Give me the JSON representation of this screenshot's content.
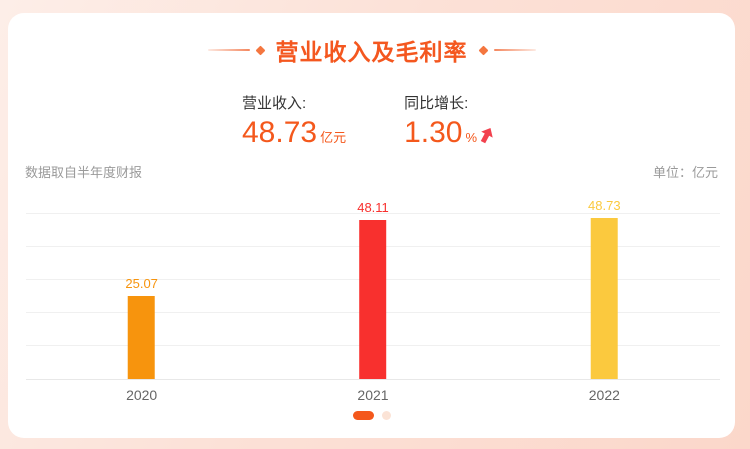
{
  "card": {
    "title": "营业收入及毛利率"
  },
  "stats": [
    {
      "label": "营业收入:",
      "value": "48.73",
      "unit": "亿元"
    },
    {
      "label": "同比增长:",
      "value": "1.30",
      "unit": "%",
      "trend": "up"
    }
  ],
  "notes": {
    "source": "数据取自半年度财报",
    "unit": "单位：亿元"
  },
  "chart_data": {
    "type": "bar",
    "title": "营业收入及毛利率",
    "categories": [
      "2020",
      "2021",
      "2022"
    ],
    "values": [
      25.07,
      48.11,
      48.73
    ],
    "value_labels": [
      "25.07",
      "48.11",
      "48.73"
    ],
    "bar_colors": [
      "#f7940d",
      "#f8302e",
      "#fbc93e"
    ],
    "xlabel": "",
    "ylabel": "",
    "unit": "亿元",
    "ylim": [
      0,
      50
    ],
    "gridline_step": 10,
    "grid": true,
    "legend": false
  },
  "pagination": {
    "pages": 2,
    "active_index": 0
  },
  "colors": {
    "accent_orange": "#f4581c",
    "title_orange": "#f4571f",
    "arrow_red": "#f2414e",
    "bar_2020": "#f7940d",
    "bar_2021": "#f8302e",
    "bar_2022": "#fbc93e",
    "background_light": "#fdeee8",
    "background_dark": "#fbd7ca",
    "pagination_inactive": "#fbe3d6"
  }
}
